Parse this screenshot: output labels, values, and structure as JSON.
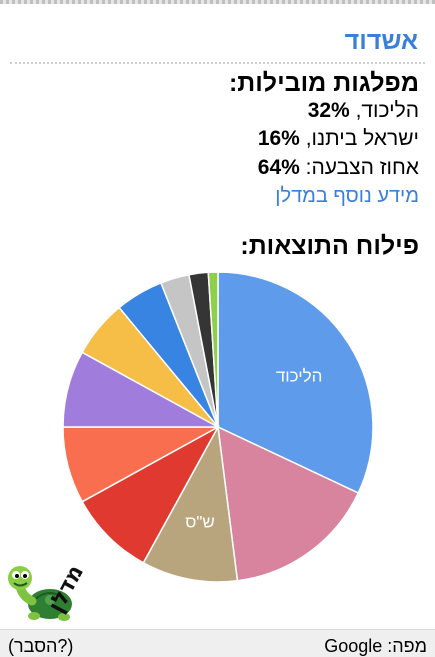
{
  "city": "אשדוד",
  "leading": {
    "title": "מפלגות מובילות:",
    "rows": [
      {
        "name": "הליכוד,",
        "value": "32%"
      },
      {
        "name": "ישראל ביתנו,",
        "value": "16%"
      },
      {
        "name": "אחוז הצבעה:",
        "value": "64%"
      }
    ],
    "more_link": "מידע נוסף במדלן"
  },
  "results": {
    "title": "פילוח התוצאות:"
  },
  "chart_data": {
    "type": "pie",
    "title": "",
    "slices": [
      {
        "label": "הליכוד",
        "value": 32,
        "color": "#5e9bea"
      },
      {
        "label": "",
        "value": 16,
        "color": "#d9849f"
      },
      {
        "label": "ש\"ס",
        "value": 10,
        "color": "#b8a57d"
      },
      {
        "label": "",
        "value": 9,
        "color": "#e03a30"
      },
      {
        "label": "",
        "value": 8,
        "color": "#f86e4f"
      },
      {
        "label": "",
        "value": 8,
        "color": "#a07ddc"
      },
      {
        "label": "",
        "value": 6,
        "color": "#f6bd47"
      },
      {
        "label": "",
        "value": 5,
        "color": "#3884e2"
      },
      {
        "label": "",
        "value": 3,
        "color": "#c5c5c5"
      },
      {
        "label": "",
        "value": 2,
        "color": "#353535"
      },
      {
        "label": "",
        "value": 1,
        "color": "#8ed047"
      }
    ]
  },
  "logo": {
    "text": "מדלן",
    "icon": "turtle-icon"
  },
  "footer": {
    "map_label": "מפה: Google",
    "explain_label": "(הסבר?)"
  }
}
